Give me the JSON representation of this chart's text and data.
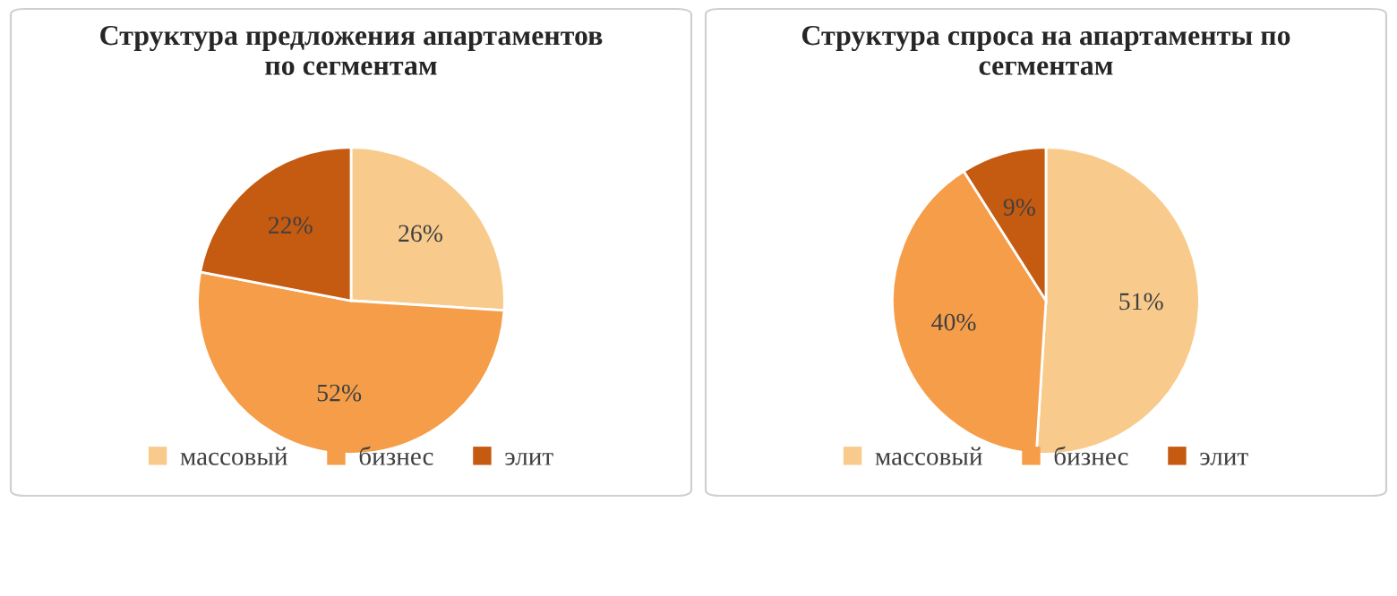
{
  "chart_data": [
    {
      "type": "pie",
      "title": "Структура предложения апартаментов по сегментам",
      "categories": [
        "массовый",
        "бизнес",
        "элит"
      ],
      "values": [
        26,
        52,
        22
      ],
      "value_labels": [
        "26%",
        "52%",
        "22%"
      ],
      "colors": [
        "#f8cb8c",
        "#f59d48",
        "#c55a11"
      ],
      "legend": "bottom"
    },
    {
      "type": "pie",
      "title": "Структура спроса на апартаменты по сегментам",
      "categories": [
        "массовый",
        "бизнес",
        "элит"
      ],
      "values": [
        51,
        40,
        9
      ],
      "value_labels": [
        "51%",
        "40%",
        "9%"
      ],
      "colors": [
        "#f8cb8c",
        "#f59d48",
        "#c55a11"
      ],
      "legend": "bottom"
    }
  ]
}
